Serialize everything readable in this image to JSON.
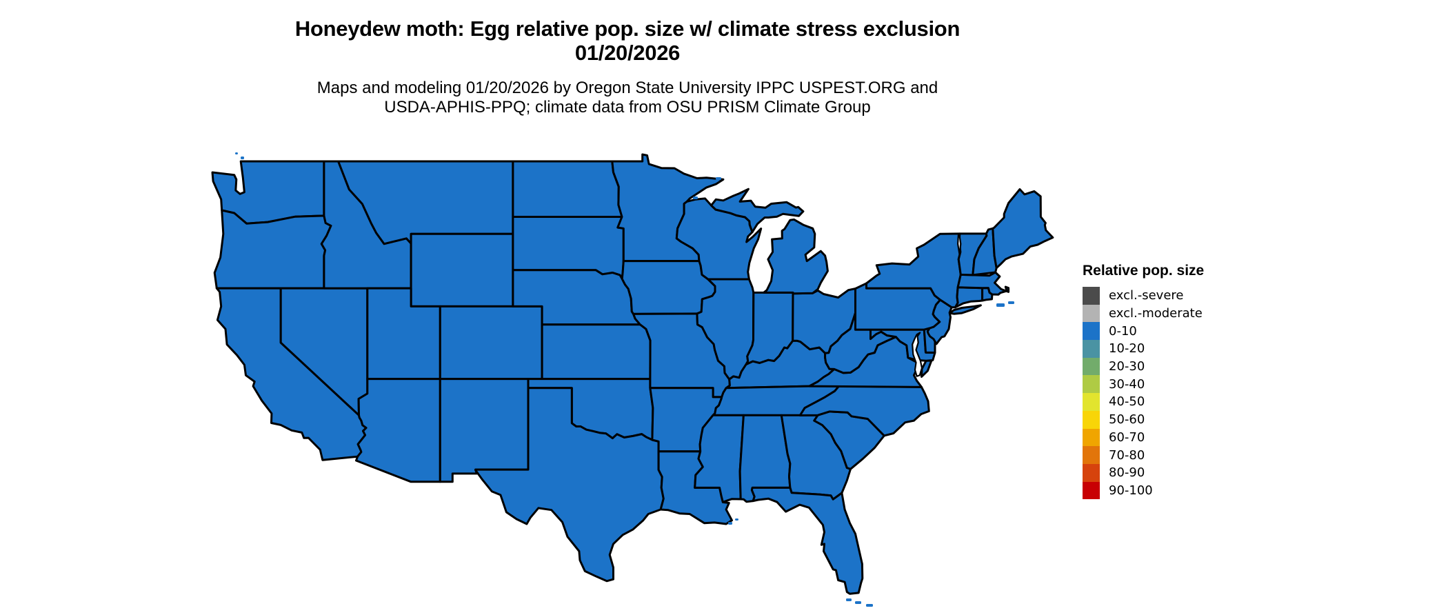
{
  "page": {
    "background": "#FFFFFF"
  },
  "title": {
    "line1": "Honeydew moth: Egg relative pop. size w/ climate stress exclusion",
    "line2": "01/20/2026"
  },
  "subtitle": {
    "line1": "Maps and modeling 01/20/2026 by Oregon State University IPPC USPEST.ORG and",
    "line2": "USDA-APHIS-PPQ; climate data from OSU PRISM Climate Group"
  },
  "map": {
    "region": "Conterminous United States",
    "fill_category": "0-10",
    "fill_color": "#1C73C8",
    "border_color": "#000000",
    "water_color": "#FFFFFF"
  },
  "legend": {
    "title": "Relative pop. size",
    "items": [
      {
        "label": "excl.-severe",
        "color": "#4B4B4B"
      },
      {
        "label": "excl.-moderate",
        "color": "#B3B3B3"
      },
      {
        "label": "0-10",
        "color": "#1C73C8"
      },
      {
        "label": "10-20",
        "color": "#4A93A3"
      },
      {
        "label": "20-30",
        "color": "#72AC6B"
      },
      {
        "label": "30-40",
        "color": "#AFCB44"
      },
      {
        "label": "40-50",
        "color": "#E2E42E"
      },
      {
        "label": "50-60",
        "color": "#F8D508"
      },
      {
        "label": "60-70",
        "color": "#F0A500"
      },
      {
        "label": "70-80",
        "color": "#E2750A"
      },
      {
        "label": "80-90",
        "color": "#D6430D"
      },
      {
        "label": "90-100",
        "color": "#C80003"
      }
    ]
  }
}
